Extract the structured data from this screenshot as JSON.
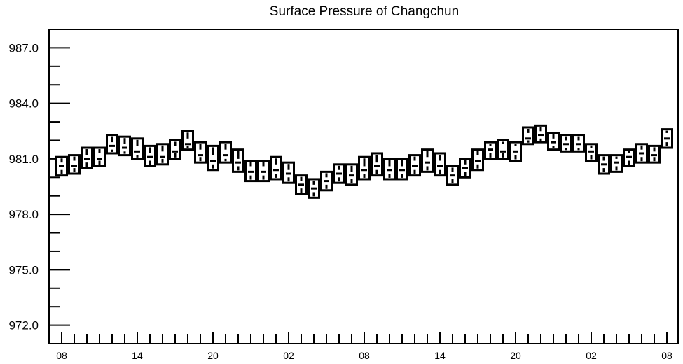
{
  "chart_data": {
    "type": "boxplot",
    "title": "Surface Pressure of Changchun",
    "xlabel": "",
    "ylabel": "",
    "ylim": [
      971.0,
      988.0
    ],
    "yticks": [
      972.0,
      975.0,
      978.0,
      981.0,
      984.0,
      987.0
    ],
    "ytick_labels": [
      "972.0",
      "975.0",
      "978.0",
      "981.0",
      "984.0",
      "987.0"
    ],
    "xtick_labels": [
      "08",
      "14",
      "20",
      "02",
      "08",
      "14",
      "20",
      "02",
      "08"
    ],
    "hours_per_box": 1,
    "grid": false,
    "series": [
      {
        "min": [
          980.1,
          980.2,
          980.5,
          980.6,
          981.3,
          981.2,
          981.0,
          980.6,
          980.7,
          981.0,
          981.5,
          980.8,
          980.4,
          980.8,
          980.3,
          979.8,
          979.8,
          979.9,
          979.7,
          979.1,
          978.9,
          979.3,
          979.7,
          979.6,
          979.9,
          980.1,
          979.9,
          979.9,
          980.1,
          980.3,
          980.1,
          979.6,
          980.0,
          980.4,
          981.0,
          981.0,
          980.9,
          981.8,
          981.9,
          981.5,
          981.4,
          981.4,
          980.9,
          980.2,
          980.3,
          980.6,
          980.8,
          980.8,
          981.6
        ],
        "q1": [
          980.4,
          980.5,
          980.8,
          980.9,
          981.5,
          981.4,
          981.2,
          980.9,
          981.0,
          981.3,
          981.7,
          981.1,
          980.7,
          981.0,
          980.6,
          980.1,
          980.1,
          980.2,
          980.0,
          979.4,
          979.2,
          979.6,
          980.0,
          979.9,
          980.2,
          980.4,
          980.2,
          980.2,
          980.4,
          980.6,
          980.4,
          979.9,
          980.3,
          980.7,
          981.3,
          981.3,
          981.2,
          982.0,
          982.1,
          981.7,
          981.6,
          981.6,
          981.2,
          980.5,
          980.6,
          980.9,
          981.1,
          981.1,
          981.9
        ],
        "median": [
          980.6,
          980.6,
          981.0,
          981.0,
          981.7,
          981.6,
          981.4,
          981.1,
          981.1,
          981.4,
          981.8,
          981.2,
          980.9,
          981.2,
          980.8,
          980.3,
          980.3,
          980.4,
          980.2,
          979.6,
          979.4,
          979.8,
          980.2,
          980.1,
          980.4,
          980.6,
          980.4,
          980.4,
          980.6,
          980.8,
          980.6,
          980.1,
          980.5,
          980.9,
          981.5,
          981.4,
          981.4,
          982.1,
          982.3,
          981.9,
          981.8,
          981.8,
          981.4,
          980.7,
          980.8,
          981.1,
          981.3,
          981.2,
          982.1
        ],
        "q3": [
          980.8,
          980.9,
          981.2,
          981.3,
          981.9,
          981.8,
          981.7,
          981.3,
          981.4,
          981.7,
          982.1,
          981.5,
          981.2,
          981.5,
          981.0,
          980.6,
          980.6,
          980.7,
          980.4,
          979.8,
          979.6,
          980.0,
          980.4,
          980.3,
          980.6,
          980.8,
          980.6,
          980.6,
          980.9,
          981.1,
          980.9,
          980.3,
          980.7,
          981.2,
          981.7,
          981.8,
          981.7,
          982.4,
          982.5,
          982.1,
          982.0,
          982.0,
          981.6,
          980.9,
          981.0,
          981.3,
          981.5,
          981.4,
          982.4
        ],
        "max": [
          981.1,
          981.2,
          981.6,
          981.6,
          982.3,
          982.2,
          982.1,
          981.7,
          981.8,
          982.0,
          982.5,
          981.9,
          981.7,
          981.9,
          981.5,
          980.9,
          980.9,
          981.1,
          980.8,
          980.1,
          979.9,
          980.3,
          980.7,
          980.7,
          981.1,
          981.3,
          981.0,
          981.0,
          981.2,
          981.5,
          981.3,
          980.6,
          981.0,
          981.5,
          981.9,
          982.0,
          981.9,
          982.7,
          982.8,
          982.4,
          982.3,
          982.3,
          981.8,
          981.2,
          981.2,
          981.5,
          981.8,
          981.7,
          982.6
        ]
      }
    ]
  }
}
